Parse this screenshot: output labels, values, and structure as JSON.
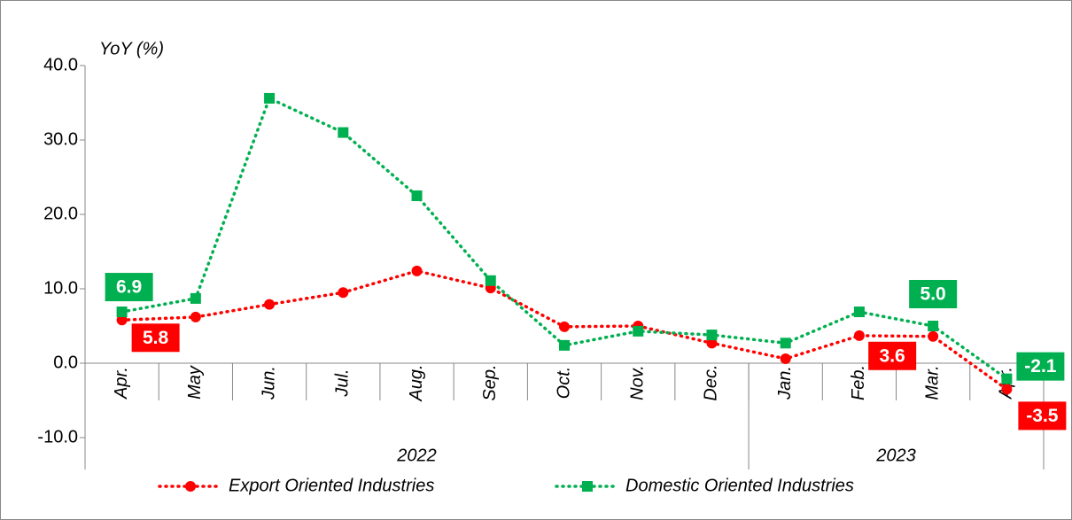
{
  "chart_data": {
    "type": "line",
    "y_axis_label": "YoY (%)",
    "categories": [
      "Apr.",
      "May",
      "Jun.",
      "Jul.",
      "Aug.",
      "Sep.",
      "Oct.",
      "Nov.",
      "Dec.",
      "Jan.",
      "Feb.",
      "Mar.",
      "Apr."
    ],
    "year_groups": [
      {
        "label": "2022",
        "count": 9
      },
      {
        "label": "2023",
        "count": 4
      }
    ],
    "series": [
      {
        "name": "Export Oriented Industries",
        "color": "#ff0000",
        "marker": "circle",
        "values": [
          5.8,
          6.2,
          7.9,
          9.5,
          12.4,
          10.1,
          4.9,
          5.0,
          2.7,
          0.6,
          3.7,
          3.6,
          -3.5
        ],
        "value_labels": [
          "5.8",
          null,
          null,
          null,
          null,
          null,
          null,
          null,
          null,
          null,
          null,
          "3.6",
          "-3.5"
        ]
      },
      {
        "name": "Domestic Oriented Industries",
        "color": "#00b050",
        "marker": "square",
        "values": [
          6.9,
          8.7,
          35.6,
          31.0,
          22.5,
          11.1,
          2.4,
          4.3,
          3.8,
          2.7,
          6.9,
          5.0,
          -2.1
        ],
        "value_labels": [
          "6.9",
          null,
          null,
          null,
          null,
          null,
          null,
          null,
          null,
          null,
          null,
          "5.0",
          "-2.1"
        ]
      }
    ],
    "ylim": [
      -10,
      40
    ],
    "yticks": [
      {
        "value": -10,
        "label": "-10.0"
      },
      {
        "value": 0,
        "label": "0.0"
      },
      {
        "value": 10,
        "label": "10.0"
      },
      {
        "value": 20,
        "label": "20.0"
      },
      {
        "value": 30,
        "label": "30.0"
      },
      {
        "value": 40,
        "label": "40.0"
      }
    ],
    "legend": "bottom"
  }
}
